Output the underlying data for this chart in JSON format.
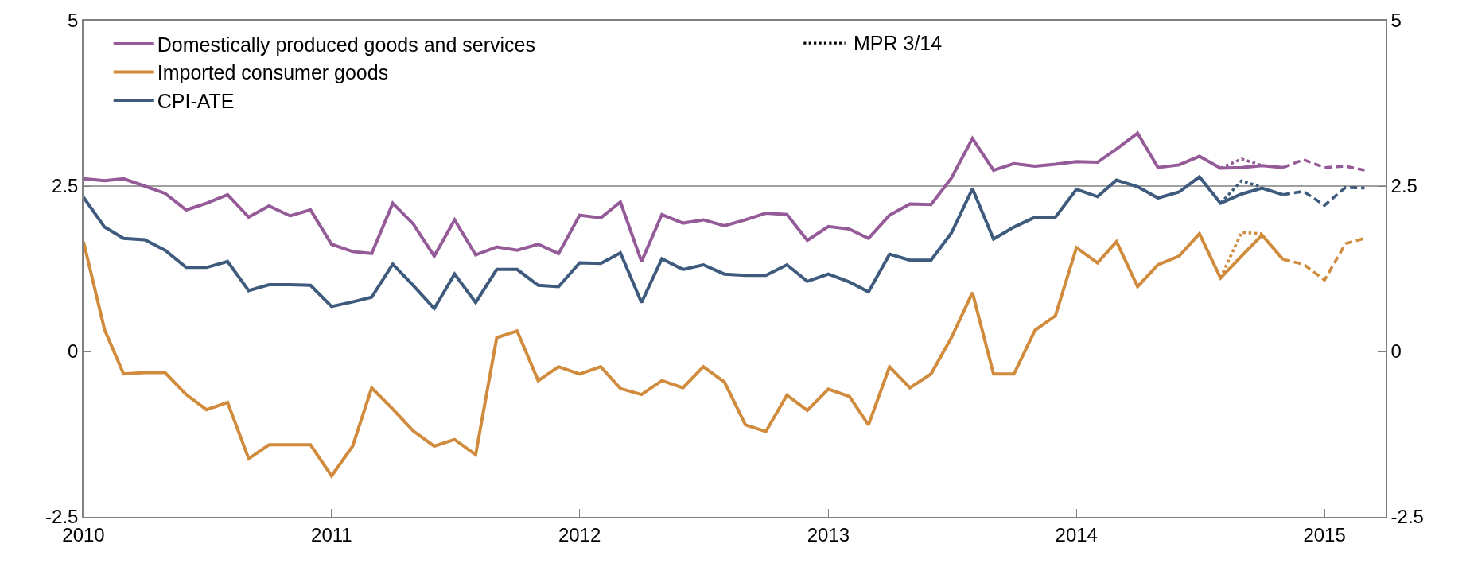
{
  "chart_data": {
    "type": "line",
    "x": [
      "2010-01",
      "2010-02",
      "2010-03",
      "2010-04",
      "2010-05",
      "2010-06",
      "2010-07",
      "2010-08",
      "2010-09",
      "2010-10",
      "2010-11",
      "2010-12",
      "2011-01",
      "2011-02",
      "2011-03",
      "2011-04",
      "2011-05",
      "2011-06",
      "2011-07",
      "2011-08",
      "2011-09",
      "2011-10",
      "2011-11",
      "2011-12",
      "2012-01",
      "2012-02",
      "2012-03",
      "2012-04",
      "2012-05",
      "2012-06",
      "2012-07",
      "2012-08",
      "2012-09",
      "2012-10",
      "2012-11",
      "2012-12",
      "2013-01",
      "2013-02",
      "2013-03",
      "2013-04",
      "2013-05",
      "2013-06",
      "2013-07",
      "2013-08",
      "2013-09",
      "2013-10",
      "2013-11",
      "2013-12",
      "2014-01",
      "2014-02",
      "2014-03",
      "2014-04",
      "2014-05",
      "2014-06",
      "2014-07",
      "2014-08",
      "2014-09",
      "2014-10",
      "2014-11"
    ],
    "series": [
      {
        "name": "Domestically produced goods and services",
        "color": "#955b98",
        "values": [
          2.61,
          2.58,
          2.61,
          2.5,
          2.39,
          2.14,
          2.24,
          2.37,
          2.03,
          2.2,
          2.05,
          2.14,
          1.62,
          1.51,
          1.48,
          2.24,
          1.93,
          1.44,
          1.99,
          1.46,
          1.58,
          1.53,
          1.62,
          1.48,
          2.06,
          2.02,
          2.26,
          1.36,
          2.07,
          1.94,
          1.99,
          1.9,
          1.99,
          2.09,
          2.07,
          1.68,
          1.89,
          1.85,
          1.71,
          2.06,
          2.23,
          2.22,
          2.62,
          3.22,
          2.74,
          2.84,
          2.8,
          2.83,
          2.87,
          2.86,
          3.06,
          3.3,
          2.78,
          2.82,
          2.95,
          2.77,
          2.78,
          2.81,
          2.78
        ]
      },
      {
        "name": "Imported consumer goods",
        "color": "#d08b3c",
        "values": [
          1.66,
          0.33,
          -0.34,
          -0.32,
          -0.32,
          -0.65,
          -0.88,
          -0.77,
          -1.62,
          -1.41,
          -1.41,
          -1.41,
          -1.88,
          -1.43,
          -0.55,
          -0.87,
          -1.2,
          -1.43,
          -1.33,
          -1.56,
          0.21,
          0.31,
          -0.44,
          -0.23,
          -0.34,
          -0.23,
          -0.56,
          -0.65,
          -0.44,
          -0.55,
          -0.23,
          -0.46,
          -1.11,
          -1.21,
          -0.66,
          -0.89,
          -0.57,
          -0.68,
          -1.11,
          -0.23,
          -0.55,
          -0.34,
          0.21,
          0.89,
          -0.34,
          -0.34,
          0.32,
          0.54,
          1.57,
          1.34,
          1.66,
          0.98,
          1.31,
          1.44,
          1.78,
          1.11,
          1.44,
          1.76,
          1.39
        ]
      },
      {
        "name": "CPI-ATE",
        "color": "#3e5a7c",
        "values": [
          2.33,
          1.88,
          1.71,
          1.69,
          1.53,
          1.27,
          1.27,
          1.36,
          0.92,
          1.01,
          1.01,
          1.0,
          0.68,
          0.75,
          0.82,
          1.32,
          1.0,
          0.65,
          1.17,
          0.74,
          1.24,
          1.24,
          1.0,
          0.98,
          1.34,
          1.33,
          1.49,
          0.74,
          1.4,
          1.24,
          1.31,
          1.17,
          1.15,
          1.15,
          1.31,
          1.06,
          1.17,
          1.05,
          0.9,
          1.47,
          1.38,
          1.38,
          1.79,
          2.46,
          1.7,
          1.88,
          2.03,
          2.03,
          2.45,
          2.34,
          2.59,
          2.49,
          2.32,
          2.41,
          2.64,
          2.24,
          2.38,
          2.47,
          2.37
        ]
      },
      {
        "color": "#955b98",
        "line_style": "dotted",
        "x": [
          "2014-08",
          "2014-09",
          "2014-10"
        ],
        "values": [
          2.77,
          2.91,
          2.81
        ]
      },
      {
        "color": "#d08b3c",
        "line_style": "dotted",
        "x": [
          "2014-08",
          "2014-09",
          "2014-10"
        ],
        "values": [
          1.11,
          1.8,
          1.78
        ]
      },
      {
        "color": "#3e5a7c",
        "line_style": "dotted",
        "x": [
          "2014-08",
          "2014-09",
          "2014-10"
        ],
        "values": [
          2.24,
          2.58,
          2.48
        ]
      },
      {
        "color": "#955b98",
        "line_style": "dashed",
        "x": [
          "2014-11",
          "2014-12",
          "2015-01",
          "2015-02",
          "2015-03"
        ],
        "values": [
          2.78,
          2.9,
          2.78,
          2.8,
          2.74
        ]
      },
      {
        "color": "#d08b3c",
        "line_style": "dashed",
        "x": [
          "2014-11",
          "2014-12",
          "2015-01",
          "2015-02",
          "2015-03"
        ],
        "values": [
          1.39,
          1.32,
          1.08,
          1.63,
          1.71
        ]
      },
      {
        "color": "#3e5a7c",
        "line_style": "dashed",
        "x": [
          "2014-11",
          "2014-12",
          "2015-01",
          "2015-02",
          "2015-03"
        ],
        "values": [
          2.37,
          2.42,
          2.21,
          2.48,
          2.47
        ]
      }
    ],
    "annotations": [
      "MPR 3/14"
    ],
    "xlim": [
      "2010-01",
      "2015-04"
    ],
    "xticks": [
      "2010",
      "2011",
      "2012",
      "2013",
      "2014",
      "2015"
    ],
    "ylim": [
      -2.5,
      5
    ],
    "yticks": [
      -2.5,
      0,
      2.5,
      5
    ],
    "y2lim": [
      -2.5,
      5
    ],
    "y2ticks": [
      -2.5,
      0,
      2.5,
      5
    ],
    "ref_lines": [
      {
        "axis": "y",
        "value": 2.5,
        "color": "#808080"
      }
    ],
    "legend": "top left",
    "grid": false
  }
}
